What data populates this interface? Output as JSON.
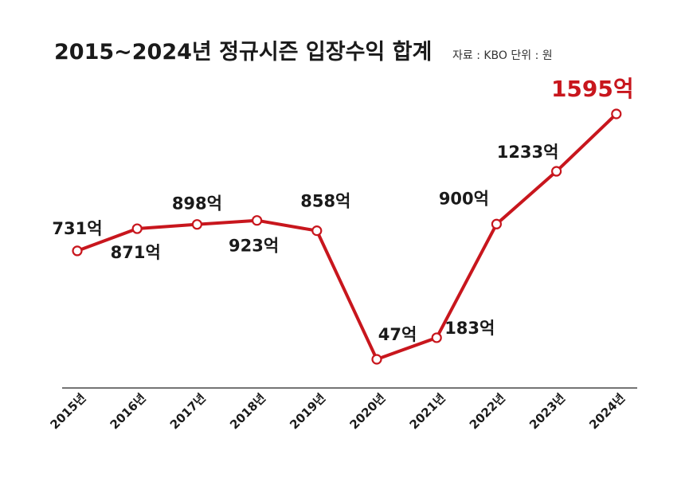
{
  "colors": {
    "line": "#c8161d",
    "text": "#1a1a1a",
    "axis": "#222222"
  },
  "chart_data": {
    "type": "line",
    "title": "2015~2024년 정규시즌 입장수익 합계",
    "source_note": "자료 : KBO  단위 : 원",
    "categories": [
      "2015년",
      "2016년",
      "2017년",
      "2018년",
      "2019년",
      "2020년",
      "2021년",
      "2022년",
      "2023년",
      "2024년"
    ],
    "values": [
      731,
      871,
      898,
      923,
      858,
      47,
      183,
      900,
      1233,
      1595
    ],
    "unit": "억",
    "data_labels": [
      "731억",
      "871억",
      "898억",
      "923억",
      "858억",
      "47억",
      "183억",
      "900억",
      "1233억",
      "1595억"
    ],
    "highlight_index": 9,
    "xlabel": "",
    "ylabel": "",
    "grid": false
  }
}
